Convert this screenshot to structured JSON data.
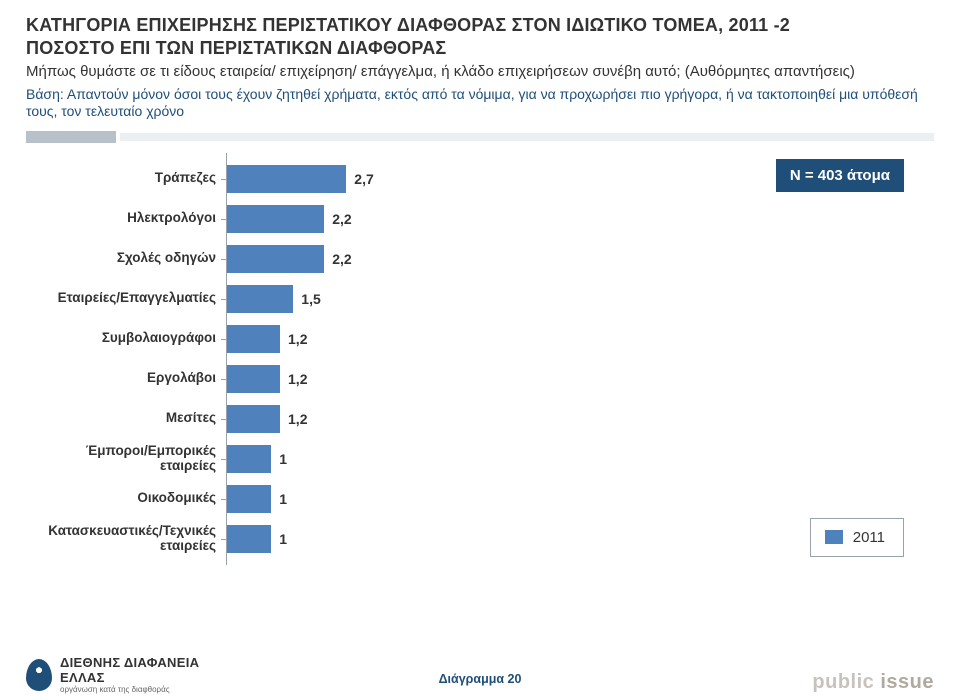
{
  "header": {
    "title_line1": "ΚΑΤΗΓΟΡΙΑ ΕΠΙΧΕΙΡΗΣΗΣ ΠΕΡΙΣΤΑΤΙΚΟΥ ΔΙΑΦΘΟΡΑΣ ΣΤΟΝ ΙΔΙΩΤΙΚΟ ΤΟΜΕΑ, 2011 -2",
    "title_line2": "ΠΟΣΟΣΤΟ ΕΠΙ ΤΩΝ ΠΕΡΙΣΤΑΤΙΚΩΝ ΔΙΑΦΘΟΡΑΣ",
    "question": "Μήπως θυμάστε σε τι είδους εταιρεία/ επιχείρηση/ επάγγελμα, ή κλάδο επιχειρήσεων συνέβη αυτό; (Αυθόρμητες απαντήσεις)",
    "base": "Βάση: Απαντούν μόνον όσοι τους έχουν ζητηθεί χρήματα, εκτός από τα νόμιμα, για να προχωρήσει πιο γρήγορα, ή να τακτοποιηθεί μια υπόθεσή τους, τον τελευταίο χρόνο"
  },
  "chart": {
    "type": "bar-horizontal",
    "xmax": 16,
    "bar_color": "#4f81bd",
    "axis_color": "#9aa2ab",
    "value_fontsize": 14,
    "category_fontsize": 13.5,
    "categories": [
      "Τράπεζες",
      "Ηλεκτρολόγοι",
      "Σχολές οδηγών",
      "Εταιρείες/Επαγγελματίες",
      "Συμβολαιογράφοι",
      "Εργολάβοι",
      "Μεσίτες",
      "Έμποροι/Εμπορικές εταιρείες",
      "Οικοδομικές",
      "Κατασκευαστικές/Τεχνικές εταιρείες"
    ],
    "values": [
      2.7,
      2.2,
      2.2,
      1.5,
      1.2,
      1.2,
      1.2,
      1.0,
      1.0,
      1.0
    ],
    "value_labels": [
      "2,7",
      "2,2",
      "2,2",
      "1,5",
      "1,2",
      "1,2",
      "1,2",
      "1",
      "1",
      "1"
    ]
  },
  "nbox": {
    "text": "Ν = 403 άτομα",
    "bg": "#1f4e79",
    "fg": "#ffffff"
  },
  "legend": {
    "label": "2011",
    "color": "#4f81bd"
  },
  "footer": {
    "diagram_label": "Διάγραμμα 20",
    "ti": {
      "line1": "ΔΙΕΘΝΗΣ ΔΙΑΦΑΝΕΙΑ",
      "line2": "ΕΛΛΑΣ",
      "line3": "οργάνωση κατά της διαφθοράς"
    },
    "pi": {
      "text1": "public ",
      "text2": "issue"
    }
  }
}
